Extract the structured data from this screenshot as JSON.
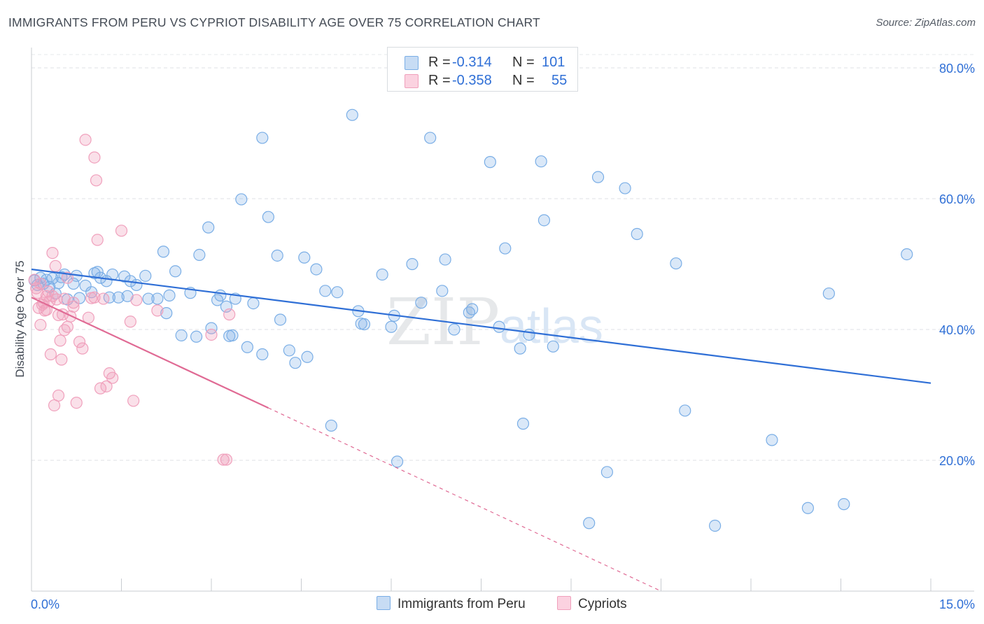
{
  "title": "IMMIGRANTS FROM PERU VS CYPRIOT DISABILITY AGE OVER 75 CORRELATION CHART",
  "source": "Source: ZipAtlas.com",
  "watermark": {
    "zip": "ZIP",
    "atlas": "atlas"
  },
  "legend_top": {
    "r_label": "R =",
    "n_label": "N =",
    "rows": [
      {
        "r_value": "-0.314",
        "n_value": "101",
        "color": "#7aaee6"
      },
      {
        "r_value": "-0.358",
        "n_value": "55",
        "color": "#f0a0bc"
      }
    ]
  },
  "legend_bottom": [
    {
      "label": "Immigrants from Peru",
      "color": "#7aaee6"
    },
    {
      "label": "Cypriots",
      "color": "#f0a0bc"
    }
  ],
  "chart_data": {
    "type": "scatter",
    "title": "IMMIGRANTS FROM PERU VS CYPRIOT DISABILITY AGE OVER 75 CORRELATION CHART",
    "xlabel": "",
    "ylabel": "Disability Age Over 75",
    "xlim": [
      0,
      15
    ],
    "ylim": [
      0,
      80
    ],
    "x_tick_labels": [
      {
        "value": 0,
        "label": "0.0%"
      },
      {
        "value": 15,
        "label": "15.0%"
      }
    ],
    "y_tick_labels": [
      {
        "value": 20,
        "label": "20.0%"
      },
      {
        "value": 40,
        "label": "40.0%"
      },
      {
        "value": 60,
        "label": "60.0%"
      },
      {
        "value": 80,
        "label": "80.0%"
      }
    ],
    "grid": true,
    "legend_position": "top-center",
    "series": [
      {
        "name": "Immigrants from Peru",
        "color": "#7aaee6",
        "line_color": "#2f6fd6",
        "trend": {
          "x": [
            0,
            15
          ],
          "y": [
            49.2,
            31.8
          ],
          "dashed_from": null
        },
        "points": [
          [
            0.05,
            47.5
          ],
          [
            0.1,
            46.8
          ],
          [
            0.15,
            47.9
          ],
          [
            0.2,
            47.0
          ],
          [
            0.25,
            47.6
          ],
          [
            0.3,
            46.5
          ],
          [
            0.35,
            47.8
          ],
          [
            0.4,
            45.5
          ],
          [
            0.45,
            47.1
          ],
          [
            0.55,
            48.4
          ],
          [
            0.6,
            44.6
          ],
          [
            0.7,
            47.0
          ],
          [
            0.75,
            48.2
          ],
          [
            0.8,
            44.8
          ],
          [
            0.9,
            46.7
          ],
          [
            1.0,
            45.7
          ],
          [
            1.05,
            48.6
          ],
          [
            1.1,
            48.8
          ],
          [
            1.15,
            47.9
          ],
          [
            1.25,
            47.4
          ],
          [
            1.3,
            44.9
          ],
          [
            1.35,
            48.4
          ],
          [
            1.45,
            44.9
          ],
          [
            1.6,
            45.1
          ],
          [
            1.65,
            47.4
          ],
          [
            1.75,
            46.8
          ],
          [
            1.9,
            48.2
          ],
          [
            1.95,
            44.7
          ],
          [
            2.1,
            44.7
          ],
          [
            2.2,
            51.9
          ],
          [
            2.3,
            45.2
          ],
          [
            2.4,
            48.9
          ],
          [
            2.5,
            39.1
          ],
          [
            2.65,
            45.6
          ],
          [
            2.8,
            51.4
          ],
          [
            2.75,
            38.9
          ],
          [
            2.95,
            55.6
          ],
          [
            3.0,
            40.2
          ],
          [
            3.1,
            44.5
          ],
          [
            3.15,
            45.2
          ],
          [
            3.25,
            43.5
          ],
          [
            3.35,
            39.1
          ],
          [
            3.4,
            44.7
          ],
          [
            3.5,
            59.9
          ],
          [
            3.6,
            37.3
          ],
          [
            3.7,
            44.0
          ],
          [
            3.85,
            69.3
          ],
          [
            3.95,
            57.2
          ],
          [
            4.1,
            51.3
          ],
          [
            4.15,
            41.5
          ],
          [
            4.3,
            36.8
          ],
          [
            4.4,
            34.9
          ],
          [
            4.55,
            51.0
          ],
          [
            4.6,
            35.8
          ],
          [
            4.75,
            49.2
          ],
          [
            4.9,
            45.9
          ],
          [
            5.0,
            25.3
          ],
          [
            5.1,
            45.7
          ],
          [
            5.35,
            72.8
          ],
          [
            5.45,
            42.8
          ],
          [
            5.5,
            40.9
          ],
          [
            5.85,
            48.4
          ],
          [
            6.0,
            40.4
          ],
          [
            6.05,
            42.1
          ],
          [
            6.1,
            19.8
          ],
          [
            6.35,
            50.0
          ],
          [
            6.5,
            44.1
          ],
          [
            6.65,
            69.3
          ],
          [
            6.85,
            45.9
          ],
          [
            6.9,
            50.7
          ],
          [
            7.05,
            40.0
          ],
          [
            7.3,
            42.6
          ],
          [
            7.35,
            43.1
          ],
          [
            7.65,
            65.6
          ],
          [
            7.8,
            40.4
          ],
          [
            7.9,
            52.4
          ],
          [
            8.15,
            37.1
          ],
          [
            8.2,
            25.6
          ],
          [
            8.3,
            39.2
          ],
          [
            8.5,
            65.7
          ],
          [
            8.55,
            56.7
          ],
          [
            8.7,
            37.4
          ],
          [
            9.3,
            10.4
          ],
          [
            9.45,
            63.3
          ],
          [
            9.6,
            18.2
          ],
          [
            9.9,
            61.6
          ],
          [
            10.1,
            54.6
          ],
          [
            10.75,
            50.1
          ],
          [
            10.9,
            27.6
          ],
          [
            11.4,
            10.0
          ],
          [
            12.35,
            23.1
          ],
          [
            12.95,
            12.7
          ],
          [
            13.3,
            45.5
          ],
          [
            13.55,
            13.3
          ],
          [
            14.6,
            51.5
          ],
          [
            3.85,
            36.2
          ],
          [
            2.25,
            42.5
          ],
          [
            1.55,
            48.1
          ],
          [
            0.5,
            48.0
          ],
          [
            3.3,
            39.0
          ],
          [
            5.55,
            40.8
          ]
        ]
      },
      {
        "name": "Cypriots",
        "color": "#f0a0bc",
        "line_color": "#e06a94",
        "trend": {
          "x": [
            0,
            10.5
          ],
          "y": [
            44.9,
            0
          ],
          "dashed_from": 3.95
        },
        "points": [
          [
            0.05,
            47.6
          ],
          [
            0.1,
            45.6
          ],
          [
            0.12,
            43.3
          ],
          [
            0.15,
            40.7
          ],
          [
            0.18,
            43.8
          ],
          [
            0.2,
            44.1
          ],
          [
            0.22,
            42.9
          ],
          [
            0.25,
            43.0
          ],
          [
            0.3,
            44.3
          ],
          [
            0.32,
            36.2
          ],
          [
            0.35,
            45.1
          ],
          [
            0.35,
            51.7
          ],
          [
            0.38,
            28.4
          ],
          [
            0.4,
            49.7
          ],
          [
            0.45,
            29.9
          ],
          [
            0.42,
            44.6
          ],
          [
            0.48,
            38.3
          ],
          [
            0.5,
            35.4
          ],
          [
            0.52,
            42.3
          ],
          [
            0.55,
            39.9
          ],
          [
            0.6,
            40.4
          ],
          [
            0.65,
            42.0
          ],
          [
            0.7,
            44.1
          ],
          [
            0.75,
            28.8
          ],
          [
            0.8,
            38.1
          ],
          [
            0.85,
            37.1
          ],
          [
            0.9,
            69.0
          ],
          [
            0.95,
            41.8
          ],
          [
            1.0,
            44.8
          ],
          [
            1.05,
            66.3
          ],
          [
            1.08,
            62.8
          ],
          [
            1.1,
            53.7
          ],
          [
            1.15,
            31.0
          ],
          [
            1.2,
            44.7
          ],
          [
            1.25,
            31.3
          ],
          [
            1.3,
            33.3
          ],
          [
            1.35,
            32.6
          ],
          [
            1.5,
            55.1
          ],
          [
            1.65,
            41.2
          ],
          [
            1.7,
            29.1
          ],
          [
            1.75,
            44.5
          ],
          [
            2.1,
            42.9
          ],
          [
            3.0,
            39.2
          ],
          [
            3.2,
            20.1
          ],
          [
            3.25,
            20.1
          ],
          [
            3.3,
            42.3
          ],
          [
            0.25,
            45.1
          ],
          [
            0.15,
            47.0
          ],
          [
            0.6,
            47.9
          ],
          [
            0.28,
            45.8
          ],
          [
            0.45,
            42.2
          ],
          [
            0.08,
            46.3
          ],
          [
            1.05,
            44.9
          ],
          [
            0.7,
            43.5
          ],
          [
            0.55,
            44.7
          ]
        ]
      }
    ]
  }
}
